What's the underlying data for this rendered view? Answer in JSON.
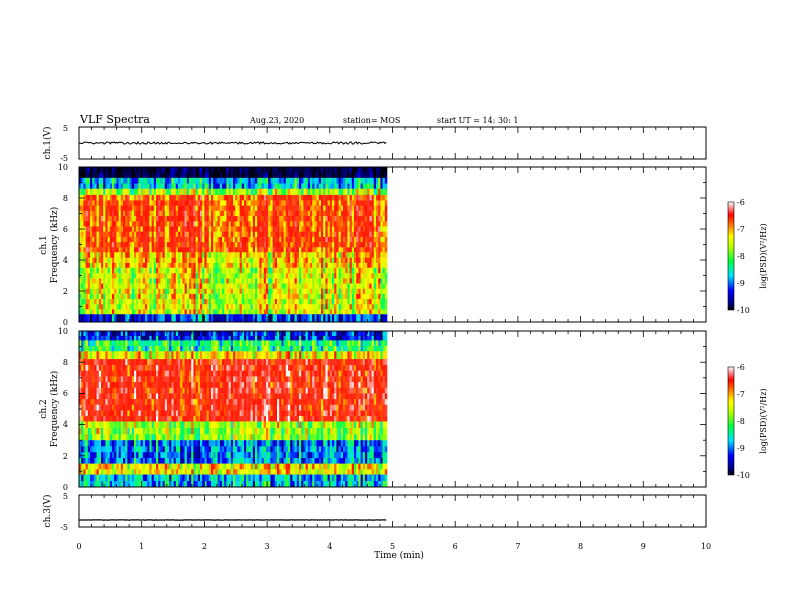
{
  "header": {
    "title": "VLF Spectra",
    "date": "Aug.23, 2020",
    "station": "station= MOS",
    "start": "start  UT =   14: 30: 1"
  },
  "chart_data": [
    {
      "type": "line",
      "panel": "ch1-waveform",
      "ylabel": "ch.1(V)",
      "ylim": [
        -5,
        5
      ],
      "y_ticks": [
        "5",
        "-5"
      ],
      "xlim": [
        0,
        10
      ],
      "series": [
        {
          "x": [
            0,
            4.9
          ],
          "values": [
            0,
            0
          ]
        }
      ]
    },
    {
      "type": "heatmap",
      "panel": "ch1-spectrogram",
      "ylabel_line1": "ch.1",
      "ylabel_line2": "Frequency (kHz)",
      "ylim": [
        0,
        10
      ],
      "y_ticks": [
        "0",
        "2",
        "4",
        "6",
        "8",
        "10"
      ],
      "xlim": [
        0,
        10
      ],
      "data_xrange": [
        0,
        4.9
      ],
      "colorbar": {
        "label": "log(PSD)(V²/Hz)",
        "range": [
          -10,
          -6
        ],
        "ticks": [
          "-6",
          "-7",
          "-8",
          "-9",
          "-10"
        ]
      },
      "bands": [
        {
          "f_low": 9.3,
          "f_high": 10,
          "level": -10.5
        },
        {
          "f_low": 8.6,
          "f_high": 9.3,
          "level": -9.0
        },
        {
          "f_low": 8.2,
          "f_high": 8.6,
          "level": -8.0
        },
        {
          "f_low": 4.5,
          "f_high": 8.2,
          "level": -7.0
        },
        {
          "f_low": 3.5,
          "f_high": 4.5,
          "level": -7.5
        },
        {
          "f_low": 0.5,
          "f_high": 3.5,
          "level": -7.8
        },
        {
          "f_low": 0,
          "f_high": 0.5,
          "level": -9.5
        }
      ]
    },
    {
      "type": "heatmap",
      "panel": "ch2-spectrogram",
      "ylabel_line1": "ch.2",
      "ylabel_line2": "Frequency (kHz)",
      "ylim": [
        0,
        10
      ],
      "y_ticks": [
        "0",
        "2",
        "4",
        "6",
        "8",
        "10"
      ],
      "xlim": [
        0,
        10
      ],
      "data_xrange": [
        0,
        4.9
      ],
      "colorbar": {
        "label": "log(PSD)(V²/Hz)",
        "range": [
          -10,
          -6
        ],
        "ticks": [
          "-6",
          "-7",
          "-8",
          "-9",
          "-10"
        ]
      },
      "bands": [
        {
          "f_low": 9.4,
          "f_high": 10,
          "level": -9.5
        },
        {
          "f_low": 8.7,
          "f_high": 9.4,
          "level": -8.5
        },
        {
          "f_low": 8.2,
          "f_high": 8.7,
          "level": -7.6
        },
        {
          "f_low": 4.2,
          "f_high": 8.2,
          "level": -6.6
        },
        {
          "f_low": 3.0,
          "f_high": 4.2,
          "level": -8.0
        },
        {
          "f_low": 1.5,
          "f_high": 3.0,
          "level": -9.2
        },
        {
          "f_low": 0.8,
          "f_high": 1.5,
          "level": -7.6
        },
        {
          "f_low": 0,
          "f_high": 0.8,
          "level": -9.0
        }
      ]
    },
    {
      "type": "line",
      "panel": "ch3-waveform",
      "ylabel": "ch.3(V)",
      "ylim": [
        -5,
        5
      ],
      "y_ticks": [
        "5",
        "-5"
      ],
      "xlim": [
        0,
        10
      ],
      "xlabel": "Time (min)",
      "x_ticks": [
        "0",
        "1",
        "2",
        "3",
        "4",
        "5",
        "6",
        "7",
        "8",
        "9",
        "10"
      ],
      "series": [
        {
          "x": [
            0,
            4.9
          ],
          "values": [
            -2.8,
            -2.8
          ]
        }
      ]
    }
  ]
}
